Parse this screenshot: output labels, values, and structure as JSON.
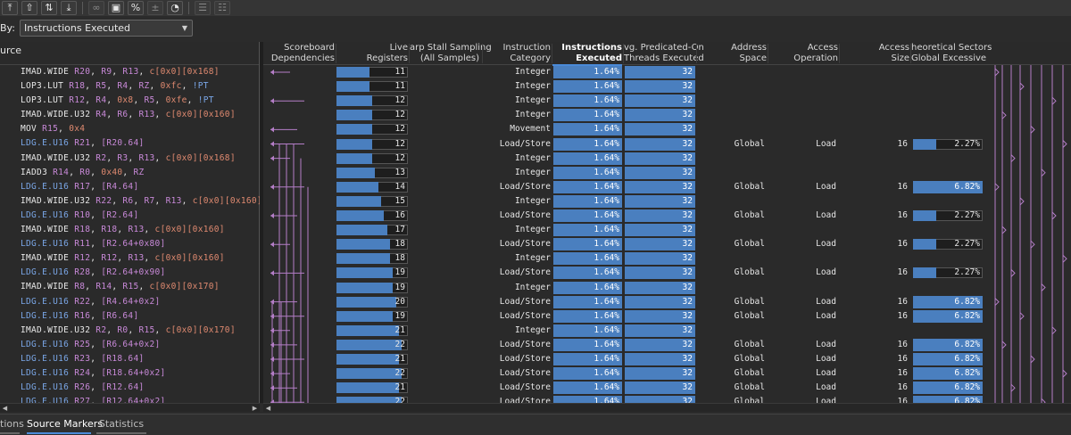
{
  "toolbar": {
    "icons": [
      "arrow-up-icon",
      "step-up-icon",
      "sort-icon",
      "step-down-icon",
      "link-icon",
      "save-icon",
      "percent-icon",
      "bar-icon",
      "pie-icon",
      "layout-top-icon",
      "layout-bottom-icon"
    ]
  },
  "sort": {
    "label": "By:",
    "selected": "Instructions Executed"
  },
  "source": {
    "header": "urce"
  },
  "columns": [
    {
      "l1": "Scoreboard",
      "l2": "Dependencies"
    },
    {
      "l1": "Live",
      "l2": "Registers"
    },
    {
      "l1": "arp Stall Sampling",
      "l2": "(All Samples)"
    },
    {
      "l1": "Instruction",
      "l2": "Category"
    },
    {
      "l1": "Instructions",
      "l2": "Executed"
    },
    {
      "l1": "vg. Predicated-On",
      "l2": "Threads Executed"
    },
    {
      "l1": "Address",
      "l2": "Space"
    },
    {
      "l1": "Access",
      "l2": "Operation"
    },
    {
      "l1": "Access",
      "l2": "Size"
    },
    {
      "l1": "heoretical Sectors",
      "l2": "Global Excessive"
    }
  ],
  "rows": [
    {
      "op": "IMAD.WIDE",
      "ldg": false,
      "args": [
        [
          "r",
          "R20"
        ],
        [
          "p",
          ", "
        ],
        [
          "r",
          "R9"
        ],
        [
          "p",
          ", "
        ],
        [
          "r",
          "R13"
        ],
        [
          "p",
          ", "
        ],
        [
          "i",
          "c[0x0][0x168]"
        ]
      ],
      "reg": 11,
      "cat": "Integer",
      "exec": "1.64%",
      "thr": "32",
      "space": "",
      "aop": "",
      "size": "",
      "sect": ""
    },
    {
      "op": "LOP3.LUT",
      "ldg": false,
      "args": [
        [
          "r",
          "R18"
        ],
        [
          "p",
          ", "
        ],
        [
          "r",
          "R5"
        ],
        [
          "p",
          ", "
        ],
        [
          "r",
          "R4"
        ],
        [
          "p",
          ", "
        ],
        [
          "r",
          "RZ"
        ],
        [
          "p",
          ", "
        ],
        [
          "i",
          "0xfc"
        ],
        [
          "p",
          ", "
        ],
        [
          "k",
          "!PT"
        ]
      ],
      "reg": 11,
      "cat": "Integer",
      "exec": "1.64%",
      "thr": "32",
      "space": "",
      "aop": "",
      "size": "",
      "sect": ""
    },
    {
      "op": "LOP3.LUT",
      "ldg": false,
      "args": [
        [
          "r",
          "R12"
        ],
        [
          "p",
          ", "
        ],
        [
          "r",
          "R4"
        ],
        [
          "p",
          ", "
        ],
        [
          "i",
          "0x8"
        ],
        [
          "p",
          ", "
        ],
        [
          "r",
          "R5"
        ],
        [
          "p",
          ", "
        ],
        [
          "i",
          "0xfe"
        ],
        [
          "p",
          ", "
        ],
        [
          "k",
          "!PT"
        ]
      ],
      "reg": 12,
      "cat": "Integer",
      "exec": "1.64%",
      "thr": "32",
      "space": "",
      "aop": "",
      "size": "",
      "sect": ""
    },
    {
      "op": "IMAD.WIDE.U32",
      "ldg": false,
      "args": [
        [
          "r",
          "R4"
        ],
        [
          "p",
          ", "
        ],
        [
          "r",
          "R6"
        ],
        [
          "p",
          ", "
        ],
        [
          "r",
          "R13"
        ],
        [
          "p",
          ", "
        ],
        [
          "i",
          "c[0x0][0x160]"
        ]
      ],
      "reg": 12,
      "cat": "Integer",
      "exec": "1.64%",
      "thr": "32",
      "space": "",
      "aop": "",
      "size": "",
      "sect": ""
    },
    {
      "op": "MOV",
      "ldg": false,
      "args": [
        [
          "r",
          "R15"
        ],
        [
          "p",
          ", "
        ],
        [
          "i",
          "0x4"
        ]
      ],
      "reg": 12,
      "cat": "Movement",
      "exec": "1.64%",
      "thr": "32",
      "space": "",
      "aop": "",
      "size": "",
      "sect": ""
    },
    {
      "op": "LDG.E.U16",
      "ldg": true,
      "args": [
        [
          "r",
          "R21"
        ],
        [
          "p",
          ", "
        ],
        [
          "r",
          "[R20.64]"
        ]
      ],
      "reg": 12,
      "cat": "Load/Store",
      "exec": "1.64%",
      "thr": "32",
      "space": "Global",
      "aop": "Load",
      "size": "16",
      "sect": "2.27%"
    },
    {
      "op": "IMAD.WIDE.U32",
      "ldg": false,
      "args": [
        [
          "r",
          "R2"
        ],
        [
          "p",
          ", "
        ],
        [
          "r",
          "R3"
        ],
        [
          "p",
          ", "
        ],
        [
          "r",
          "R13"
        ],
        [
          "p",
          ", "
        ],
        [
          "i",
          "c[0x0][0x168]"
        ]
      ],
      "reg": 12,
      "cat": "Integer",
      "exec": "1.64%",
      "thr": "32",
      "space": "",
      "aop": "",
      "size": "",
      "sect": ""
    },
    {
      "op": "IADD3",
      "ldg": false,
      "args": [
        [
          "r",
          "R14"
        ],
        [
          "p",
          ", "
        ],
        [
          "r",
          "R0"
        ],
        [
          "p",
          ", "
        ],
        [
          "i",
          "0x40"
        ],
        [
          "p",
          ", "
        ],
        [
          "r",
          "RZ"
        ]
      ],
      "reg": 13,
      "cat": "Integer",
      "exec": "1.64%",
      "thr": "32",
      "space": "",
      "aop": "",
      "size": "",
      "sect": ""
    },
    {
      "op": "LDG.E.U16",
      "ldg": true,
      "args": [
        [
          "r",
          "R17"
        ],
        [
          "p",
          ", "
        ],
        [
          "r",
          "[R4.64]"
        ]
      ],
      "reg": 14,
      "cat": "Load/Store",
      "exec": "1.64%",
      "thr": "32",
      "space": "Global",
      "aop": "Load",
      "size": "16",
      "sect": "6.82%"
    },
    {
      "op": "IMAD.WIDE.U32",
      "ldg": false,
      "args": [
        [
          "r",
          "R22"
        ],
        [
          "p",
          ", "
        ],
        [
          "r",
          "R6"
        ],
        [
          "p",
          ", "
        ],
        [
          "r",
          "R7"
        ],
        [
          "p",
          ", "
        ],
        [
          "r",
          "R13"
        ],
        [
          "p",
          ", "
        ],
        [
          "i",
          "c[0x0][0x160]"
        ]
      ],
      "reg": 15,
      "cat": "Integer",
      "exec": "1.64%",
      "thr": "32",
      "space": "",
      "aop": "",
      "size": "",
      "sect": ""
    },
    {
      "op": "LDG.E.U16",
      "ldg": true,
      "args": [
        [
          "r",
          "R10"
        ],
        [
          "p",
          ", "
        ],
        [
          "r",
          "[R2.64]"
        ]
      ],
      "reg": 16,
      "cat": "Load/Store",
      "exec": "1.64%",
      "thr": "32",
      "space": "Global",
      "aop": "Load",
      "size": "16",
      "sect": "2.27%"
    },
    {
      "op": "IMAD.WIDE",
      "ldg": false,
      "args": [
        [
          "r",
          "R18"
        ],
        [
          "p",
          ", "
        ],
        [
          "r",
          "R18"
        ],
        [
          "p",
          ", "
        ],
        [
          "r",
          "R13"
        ],
        [
          "p",
          ", "
        ],
        [
          "i",
          "c[0x0][0x160]"
        ]
      ],
      "reg": 17,
      "cat": "Integer",
      "exec": "1.64%",
      "thr": "32",
      "space": "",
      "aop": "",
      "size": "",
      "sect": ""
    },
    {
      "op": "LDG.E.U16",
      "ldg": true,
      "args": [
        [
          "r",
          "R11"
        ],
        [
          "p",
          ", "
        ],
        [
          "r",
          "[R2.64+0x80]"
        ]
      ],
      "reg": 18,
      "cat": "Load/Store",
      "exec": "1.64%",
      "thr": "32",
      "space": "Global",
      "aop": "Load",
      "size": "16",
      "sect": "2.27%"
    },
    {
      "op": "IMAD.WIDE",
      "ldg": false,
      "args": [
        [
          "r",
          "R12"
        ],
        [
          "p",
          ", "
        ],
        [
          "r",
          "R12"
        ],
        [
          "p",
          ", "
        ],
        [
          "r",
          "R13"
        ],
        [
          "p",
          ", "
        ],
        [
          "i",
          "c[0x0][0x160]"
        ]
      ],
      "reg": 18,
      "cat": "Integer",
      "exec": "1.64%",
      "thr": "32",
      "space": "",
      "aop": "",
      "size": "",
      "sect": ""
    },
    {
      "op": "LDG.E.U16",
      "ldg": true,
      "args": [
        [
          "r",
          "R28"
        ],
        [
          "p",
          ", "
        ],
        [
          "r",
          "[R2.64+0x90]"
        ]
      ],
      "reg": 19,
      "cat": "Load/Store",
      "exec": "1.64%",
      "thr": "32",
      "space": "Global",
      "aop": "Load",
      "size": "16",
      "sect": "2.27%"
    },
    {
      "op": "IMAD.WIDE",
      "ldg": false,
      "args": [
        [
          "r",
          "R8"
        ],
        [
          "p",
          ", "
        ],
        [
          "r",
          "R14"
        ],
        [
          "p",
          ", "
        ],
        [
          "r",
          "R15"
        ],
        [
          "p",
          ", "
        ],
        [
          "i",
          "c[0x0][0x170]"
        ]
      ],
      "reg": 19,
      "cat": "Integer",
      "exec": "1.64%",
      "thr": "32",
      "space": "",
      "aop": "",
      "size": "",
      "sect": ""
    },
    {
      "op": "LDG.E.U16",
      "ldg": true,
      "args": [
        [
          "r",
          "R22"
        ],
        [
          "p",
          ", "
        ],
        [
          "r",
          "[R4.64+0x2]"
        ]
      ],
      "reg": 20,
      "cat": "Load/Store",
      "exec": "1.64%",
      "thr": "32",
      "space": "Global",
      "aop": "Load",
      "size": "16",
      "sect": "6.82%"
    },
    {
      "op": "LDG.E.U16",
      "ldg": true,
      "args": [
        [
          "r",
          "R16"
        ],
        [
          "p",
          ", "
        ],
        [
          "r",
          "[R6.64]"
        ]
      ],
      "reg": 19,
      "cat": "Load/Store",
      "exec": "1.64%",
      "thr": "32",
      "space": "Global",
      "aop": "Load",
      "size": "16",
      "sect": "6.82%"
    },
    {
      "op": "IMAD.WIDE.U32",
      "ldg": false,
      "args": [
        [
          "r",
          "R2"
        ],
        [
          "p",
          ", "
        ],
        [
          "r",
          "R0"
        ],
        [
          "p",
          ", "
        ],
        [
          "r",
          "R15"
        ],
        [
          "p",
          ", "
        ],
        [
          "i",
          "c[0x0][0x170]"
        ]
      ],
      "reg": 21,
      "cat": "Integer",
      "exec": "1.64%",
      "thr": "32",
      "space": "",
      "aop": "",
      "size": "",
      "sect": ""
    },
    {
      "op": "LDG.E.U16",
      "ldg": true,
      "args": [
        [
          "r",
          "R25"
        ],
        [
          "p",
          ", "
        ],
        [
          "r",
          "[R6.64+0x2]"
        ]
      ],
      "reg": 22,
      "cat": "Load/Store",
      "exec": "1.64%",
      "thr": "32",
      "space": "Global",
      "aop": "Load",
      "size": "16",
      "sect": "6.82%"
    },
    {
      "op": "LDG.E.U16",
      "ldg": true,
      "args": [
        [
          "r",
          "R23"
        ],
        [
          "p",
          ", "
        ],
        [
          "r",
          "[R18.64]"
        ]
      ],
      "reg": 21,
      "cat": "Load/Store",
      "exec": "1.64%",
      "thr": "32",
      "space": "Global",
      "aop": "Load",
      "size": "16",
      "sect": "6.82%"
    },
    {
      "op": "LDG.E.U16",
      "ldg": true,
      "args": [
        [
          "r",
          "R24"
        ],
        [
          "p",
          ", "
        ],
        [
          "r",
          "[R18.64+0x2]"
        ]
      ],
      "reg": 22,
      "cat": "Load/Store",
      "exec": "1.64%",
      "thr": "32",
      "space": "Global",
      "aop": "Load",
      "size": "16",
      "sect": "6.82%"
    },
    {
      "op": "LDG.E.U16",
      "ldg": true,
      "args": [
        [
          "r",
          "R26"
        ],
        [
          "p",
          ", "
        ],
        [
          "r",
          "[R12.64]"
        ]
      ],
      "reg": 21,
      "cat": "Load/Store",
      "exec": "1.64%",
      "thr": "32",
      "space": "Global",
      "aop": "Load",
      "size": "16",
      "sect": "6.82%"
    },
    {
      "op": "LDG.E.U16",
      "ldg": true,
      "args": [
        [
          "r",
          "R27"
        ],
        [
          "p",
          ", "
        ],
        [
          "r",
          "[R12.64+0x2]"
        ]
      ],
      "reg": 22,
      "cat": "Load/Store",
      "exec": "1.64%",
      "thr": "32",
      "space": "Global",
      "aop": "Load",
      "size": "16",
      "sect": "6.82%"
    }
  ],
  "tabs": [
    {
      "label": "tions",
      "active": false
    },
    {
      "label": "Source Markers",
      "active": true
    },
    {
      "label": "Statistics",
      "active": false
    }
  ],
  "colors": {
    "accent": "#4a7fbf",
    "register": "#c889d8",
    "immediate": "#e08a70",
    "load_op": "#7aa6e6"
  }
}
